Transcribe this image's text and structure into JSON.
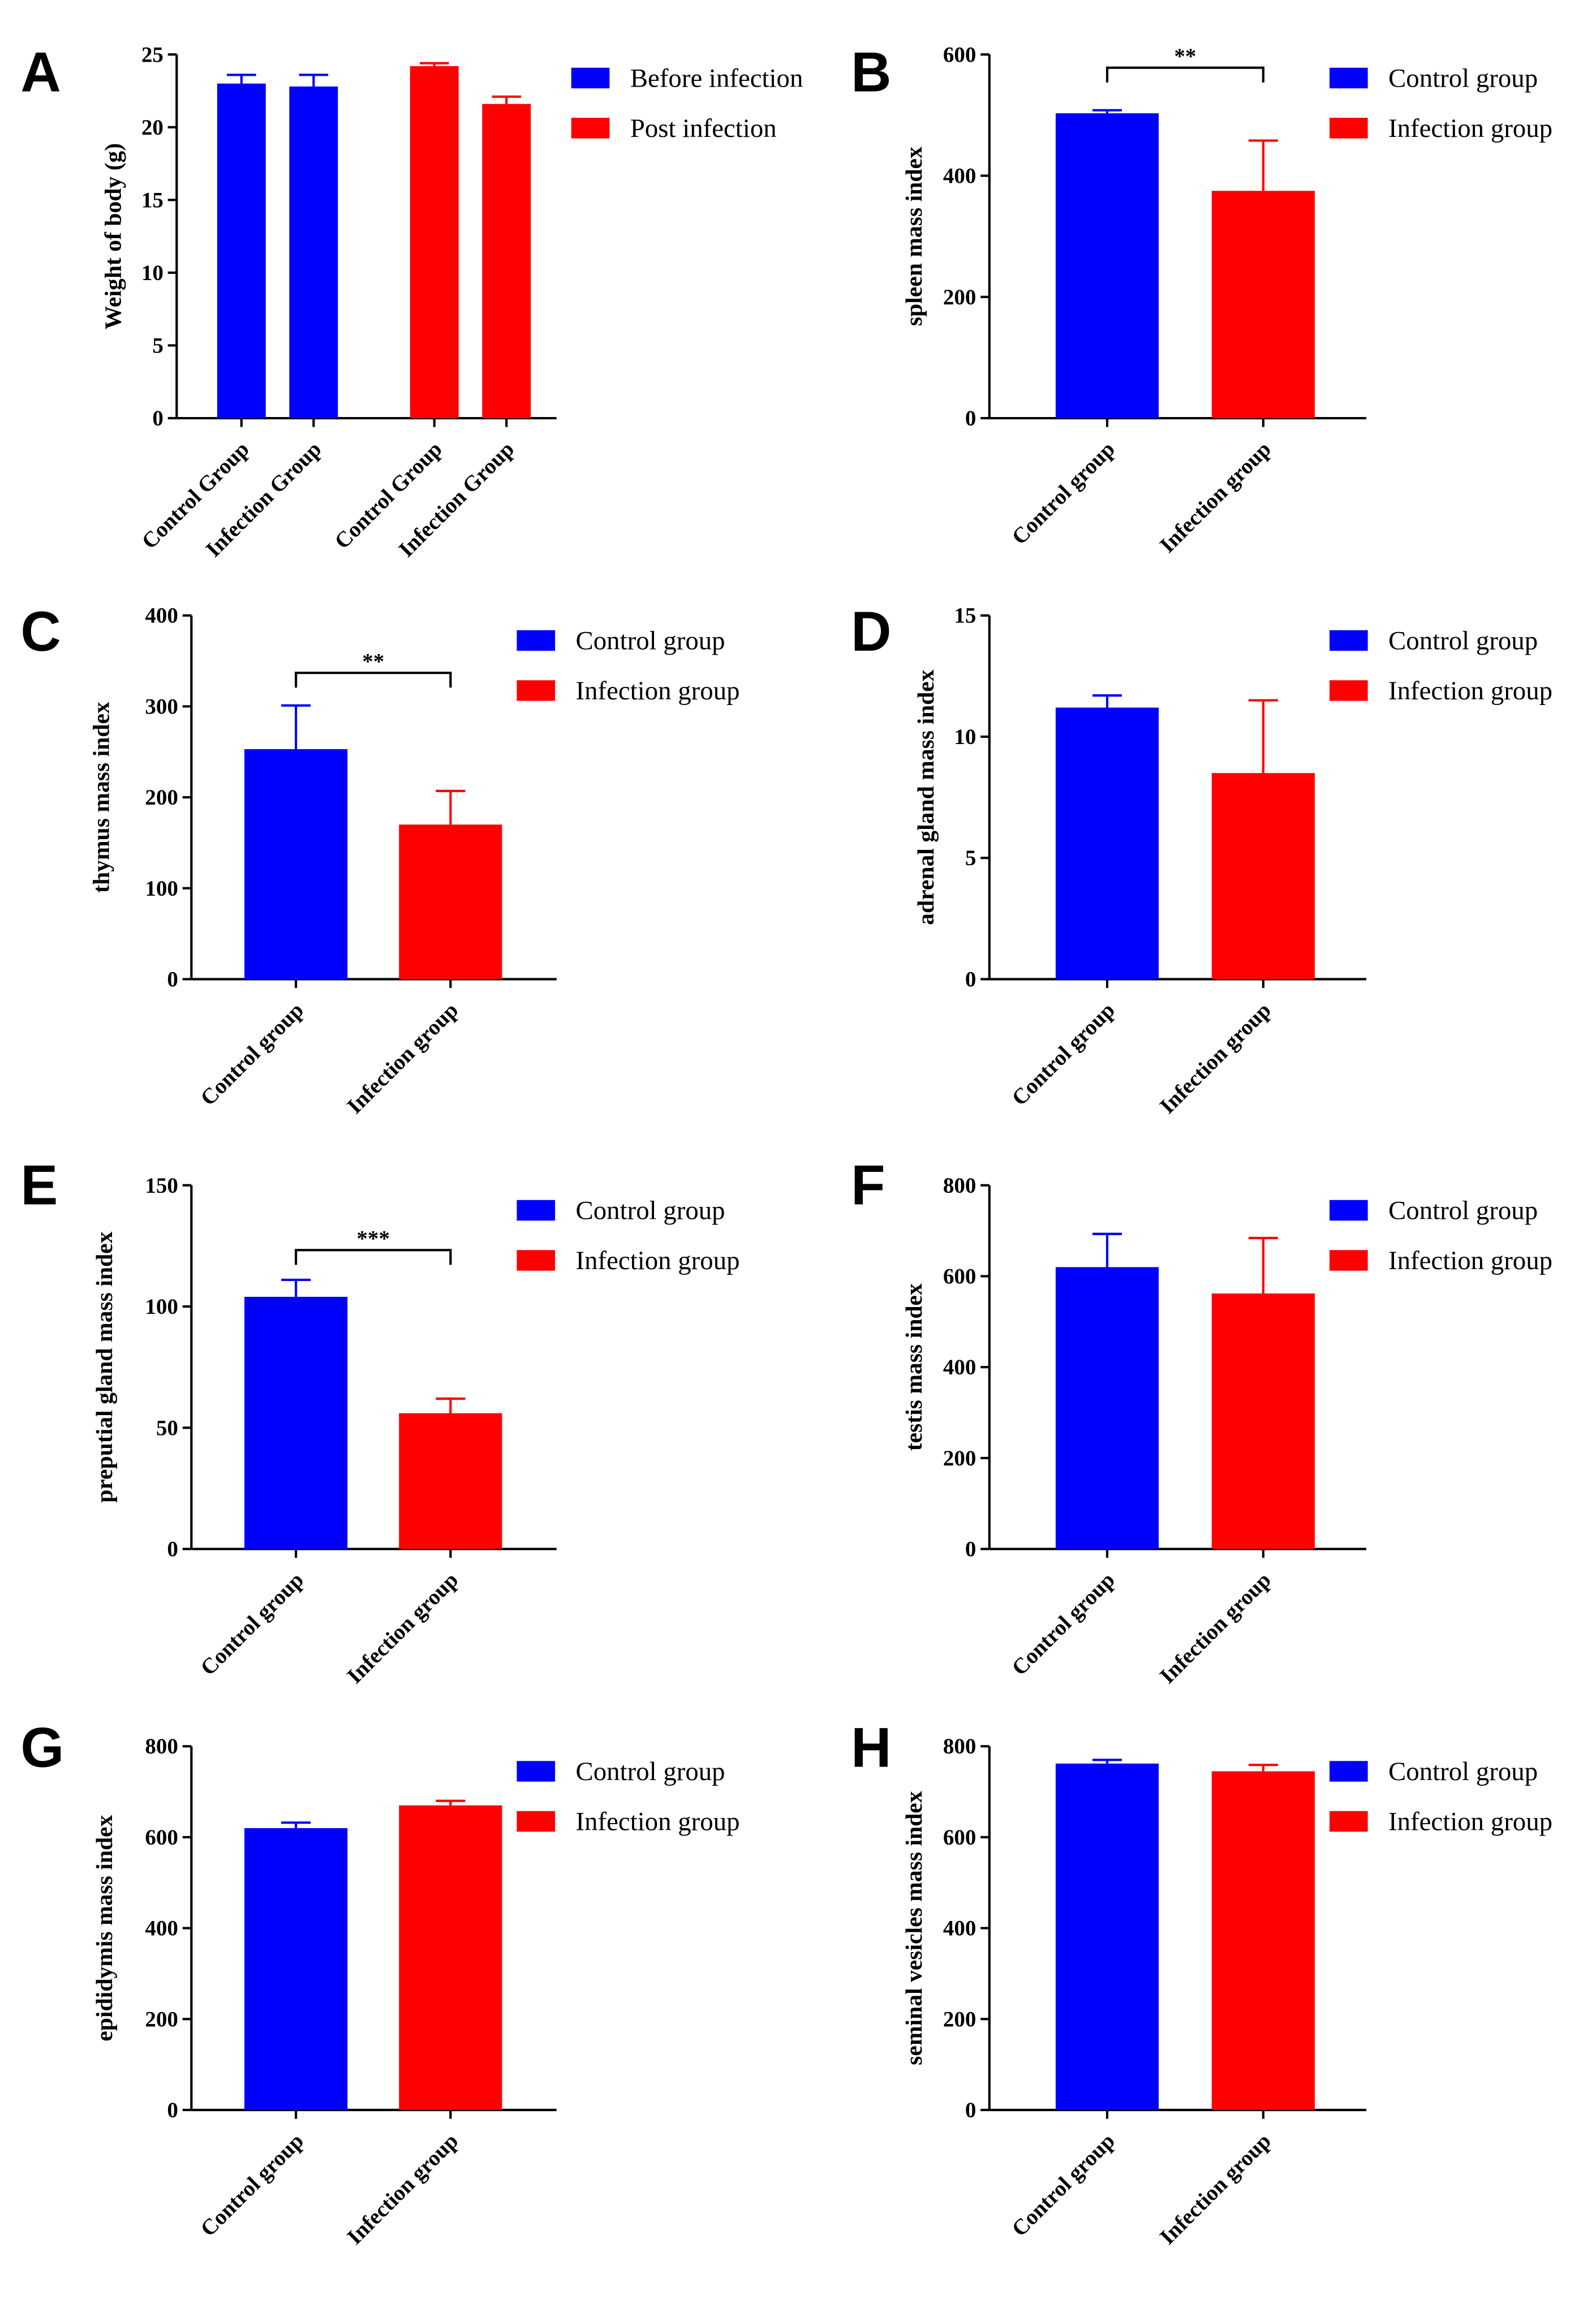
{
  "chart_data": [
    {
      "type": "bar",
      "panel": "A",
      "y_label": "Weight of body (g)",
      "categories": [
        "Control Group",
        "Infection Group",
        "Control Group",
        "Infection Group"
      ],
      "series": [
        {
          "name": "Before infection",
          "color": "#0000ff",
          "values": [
            23,
            22.8,
            null,
            null
          ],
          "errors": [
            0.6,
            0.8,
            null,
            null
          ]
        },
        {
          "name": "Post infection",
          "color": "#ff0000",
          "values": [
            null,
            null,
            24.2,
            21.6
          ],
          "errors": [
            null,
            null,
            0.2,
            0.5
          ]
        }
      ],
      "ylim": [
        0,
        25
      ],
      "yticks": [
        0,
        5,
        10,
        15,
        20,
        25
      ]
    },
    {
      "type": "bar",
      "panel": "B",
      "y_label": "spleen mass index",
      "categories": [
        "Control group",
        "Infection group"
      ],
      "colors": [
        "#0000ff",
        "#ff0000"
      ],
      "values": [
        503,
        375
      ],
      "errors": [
        5,
        83
      ],
      "significance": "**",
      "ylim": [
        0,
        600
      ],
      "yticks": [
        0,
        200,
        400,
        600
      ]
    },
    {
      "type": "bar",
      "panel": "C",
      "y_label": "thymus  mass index",
      "categories": [
        "Control group",
        "Infection group"
      ],
      "colors": [
        "#0000ff",
        "#ff0000"
      ],
      "values": [
        253,
        170
      ],
      "errors": [
        48,
        37
      ],
      "significance": "**",
      "ylim": [
        0,
        400
      ],
      "yticks": [
        0,
        100,
        200,
        300,
        400
      ]
    },
    {
      "type": "bar",
      "panel": "D",
      "y_label": "adrenal gland mass index",
      "categories": [
        "Control group",
        "Infection group"
      ],
      "colors": [
        "#0000ff",
        "#ff0000"
      ],
      "values": [
        11.2,
        8.5
      ],
      "errors": [
        0.5,
        3.0
      ],
      "ylim": [
        0,
        15
      ],
      "yticks": [
        0,
        5,
        10,
        15
      ]
    },
    {
      "type": "bar",
      "panel": "E",
      "y_label": "preputial gland mass index",
      "categories": [
        "Control group",
        "Infection group"
      ],
      "colors": [
        "#0000ff",
        "#ff0000"
      ],
      "values": [
        104,
        56
      ],
      "errors": [
        7,
        6
      ],
      "significance": "***",
      "ylim": [
        0,
        150
      ],
      "yticks": [
        0,
        50,
        100,
        150
      ]
    },
    {
      "type": "bar",
      "panel": "F",
      "y_label": "testis mass index",
      "categories": [
        "Control group",
        "Infection group"
      ],
      "colors": [
        "#0000ff",
        "#ff0000"
      ],
      "values": [
        620,
        562
      ],
      "errors": [
        73,
        122
      ],
      "ylim": [
        0,
        800
      ],
      "yticks": [
        0,
        200,
        400,
        600,
        800
      ]
    },
    {
      "type": "bar",
      "panel": "G",
      "y_label": "epididymis mass index",
      "categories": [
        "Control group",
        "Infection group"
      ],
      "colors": [
        "#0000ff",
        "#ff0000"
      ],
      "values": [
        620,
        670
      ],
      "errors": [
        12,
        10
      ],
      "ylim": [
        0,
        800
      ],
      "yticks": [
        0,
        200,
        400,
        600,
        800
      ]
    },
    {
      "type": "bar",
      "panel": "H",
      "y_label": "seminal vesicles mass index",
      "categories": [
        "Control group",
        "Infection group"
      ],
      "colors": [
        "#0000ff",
        "#ff0000"
      ],
      "values": [
        762,
        745
      ],
      "errors": [
        8,
        14
      ],
      "ylim": [
        0,
        800
      ],
      "yticks": [
        0,
        200,
        400,
        600,
        800
      ]
    }
  ]
}
